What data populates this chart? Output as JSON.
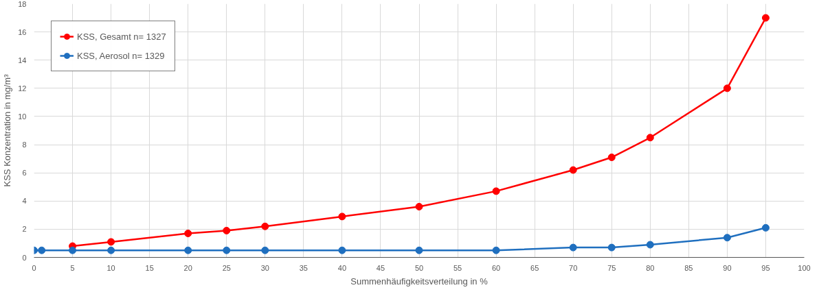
{
  "chart_data": {
    "type": "line",
    "xlabel": "Summenhäufigkeitsverteilung in %",
    "ylabel": "KSS Konzentration in mg/m³",
    "x": [
      0,
      1,
      5,
      10,
      20,
      25,
      30,
      40,
      50,
      60,
      70,
      75,
      80,
      90,
      95
    ],
    "series": [
      {
        "name": "KSS, Gesamt n= 1327",
        "color": "#ff0000",
        "values": [
          null,
          null,
          0.8,
          1.1,
          1.7,
          1.9,
          2.2,
          2.9,
          3.6,
          4.7,
          6.2,
          7.1,
          8.5,
          12,
          17
        ]
      },
      {
        "name": "KSS, Aerosol n= 1329",
        "color": "#1f6fbf",
        "values": [
          0.5,
          0.5,
          0.5,
          0.5,
          0.5,
          0.5,
          0.5,
          0.5,
          0.5,
          0.5,
          0.7,
          0.7,
          0.9,
          1.4,
          2.1
        ]
      }
    ],
    "xlim": [
      0,
      100
    ],
    "xticks": [
      0,
      5,
      10,
      15,
      20,
      25,
      30,
      35,
      40,
      45,
      50,
      55,
      60,
      65,
      70,
      75,
      80,
      85,
      90,
      95,
      100
    ],
    "ylim": [
      0,
      18
    ],
    "yticks": [
      0,
      2,
      4,
      6,
      8,
      10,
      12,
      14,
      16,
      18
    ],
    "grid": true,
    "legend": "top left",
    "marker": "circle",
    "line_style": "solid"
  }
}
